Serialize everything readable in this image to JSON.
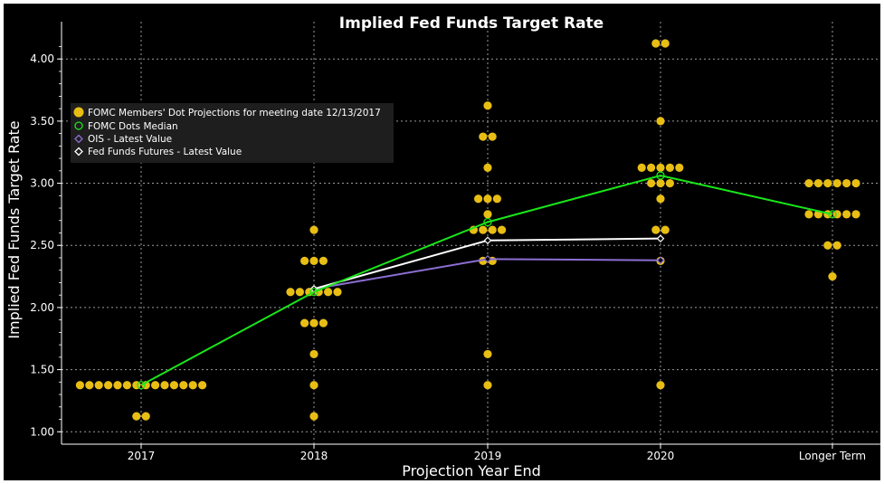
{
  "chart_data": {
    "type": "scatter",
    "title": "Implied Fed Funds Target Rate",
    "xlabel": "Projection Year End",
    "ylabel": "Implied Fed Funds Target Rate",
    "categories": [
      "2017",
      "2018",
      "2019",
      "2020",
      "Longer Term"
    ],
    "ylim": [
      0.9,
      4.3
    ],
    "yticks": [
      "1.00",
      "1.50",
      "2.00",
      "2.50",
      "3.00",
      "3.50",
      "4.00"
    ],
    "grid": true,
    "legend_position": "top-left",
    "legend": [
      "FOMC Members' Dot Projections for meeting date 12/13/2017",
      "FOMC Dots Median",
      "OIS - Latest Value",
      "Fed Funds Futures - Latest Value"
    ],
    "dots": [
      {
        "category": "2017",
        "levels": [
          {
            "y": 1.375,
            "count": 14
          },
          {
            "y": 1.125,
            "count": 2
          }
        ]
      },
      {
        "category": "2018",
        "levels": [
          {
            "y": 2.625,
            "count": 1
          },
          {
            "y": 2.375,
            "count": 3
          },
          {
            "y": 2.125,
            "count": 6
          },
          {
            "y": 1.875,
            "count": 3
          },
          {
            "y": 1.625,
            "count": 1
          },
          {
            "y": 1.375,
            "count": 1
          },
          {
            "y": 1.125,
            "count": 1
          }
        ]
      },
      {
        "category": "2019",
        "levels": [
          {
            "y": 3.625,
            "count": 1
          },
          {
            "y": 3.375,
            "count": 2
          },
          {
            "y": 3.125,
            "count": 1
          },
          {
            "y": 2.875,
            "count": 3
          },
          {
            "y": 2.75,
            "count": 1
          },
          {
            "y": 2.625,
            "count": 4
          },
          {
            "y": 2.375,
            "count": 2
          },
          {
            "y": 1.625,
            "count": 1
          },
          {
            "y": 1.375,
            "count": 1
          }
        ]
      },
      {
        "category": "2020",
        "levels": [
          {
            "y": 4.125,
            "count": 2
          },
          {
            "y": 3.5,
            "count": 1
          },
          {
            "y": 3.125,
            "count": 5
          },
          {
            "y": 3.0,
            "count": 3
          },
          {
            "y": 2.875,
            "count": 1
          },
          {
            "y": 2.625,
            "count": 2
          },
          {
            "y": 2.375,
            "count": 1
          },
          {
            "y": 1.375,
            "count": 1
          }
        ]
      },
      {
        "category": "Longer Term",
        "levels": [
          {
            "y": 3.0,
            "count": 6
          },
          {
            "y": 2.75,
            "count": 6
          },
          {
            "y": 2.5,
            "count": 2
          },
          {
            "y": 2.25,
            "count": 1
          }
        ]
      }
    ],
    "series": [
      {
        "name": "FOMC Dots Median",
        "categories": [
          "2017",
          "2018",
          "2019",
          "2020",
          "Longer Term"
        ],
        "values": [
          1.375,
          2.125,
          2.6875,
          3.0625,
          2.75
        ]
      },
      {
        "name": "OIS - Latest Value",
        "categories": [
          "2018",
          "2019",
          "2020"
        ],
        "values": [
          2.15,
          2.39,
          2.38
        ]
      },
      {
        "name": "Fed Funds Futures - Latest Value",
        "categories": [
          "2018",
          "2019",
          "2020"
        ],
        "values": [
          2.15,
          2.54,
          2.555
        ]
      }
    ],
    "colors": {
      "background": "#000000",
      "grid": "#9a9a9a",
      "dots": "#e8be14",
      "median": "#19e619",
      "ois": "#8c6fd2",
      "futures": "#ffffff",
      "legend_bg": "#1e1e1e"
    }
  }
}
